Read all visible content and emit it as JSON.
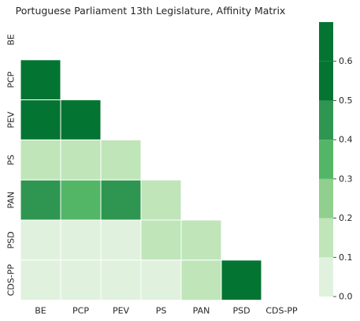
{
  "chart_data": {
    "type": "heatmap",
    "title": "Portuguese Parliament 13th Legislature, Affinity Matrix",
    "xlabel": "",
    "ylabel": "",
    "rows": [
      "BE",
      "PCP",
      "PEV",
      "PS",
      "PAN",
      "PSD",
      "CDS-PP"
    ],
    "columns": [
      "BE",
      "PCP",
      "PEV",
      "PS",
      "PAN",
      "PSD",
      "CDS-PP"
    ],
    "mask": "upper-triangle-including-diagonal",
    "values": [
      [
        null,
        null,
        null,
        null,
        null,
        null,
        null
      ],
      [
        0.65,
        null,
        null,
        null,
        null,
        null,
        null
      ],
      [
        0.65,
        0.65,
        null,
        null,
        null,
        null,
        null
      ],
      [
        0.15,
        0.15,
        0.15,
        null,
        null,
        null,
        null
      ],
      [
        0.45,
        0.35,
        0.45,
        0.15,
        null,
        null,
        null
      ],
      [
        0.05,
        0.05,
        0.05,
        0.15,
        0.15,
        null,
        null
      ],
      [
        0.05,
        0.05,
        0.05,
        0.05,
        0.15,
        0.55,
        null
      ]
    ],
    "colorbar": {
      "min": 0.0,
      "max": 0.7,
      "ticks": [
        "0.0",
        "0.1",
        "0.2",
        "0.3",
        "0.4",
        "0.5",
        "0.6"
      ],
      "bins": [
        0.0,
        0.1,
        0.2,
        0.3,
        0.4,
        0.5,
        0.6,
        0.7
      ],
      "colors": [
        "#e0f2de",
        "#bfe5b9",
        "#90cf8e",
        "#53b667",
        "#2e9650",
        "#047432",
        "#047432"
      ]
    },
    "grid": false,
    "legend": "right"
  }
}
